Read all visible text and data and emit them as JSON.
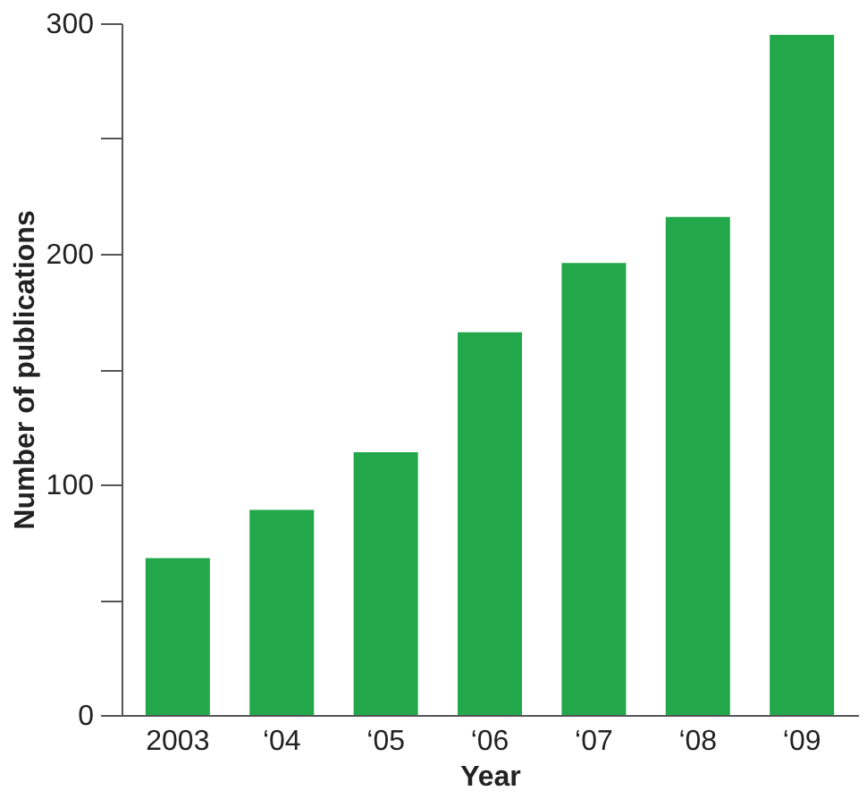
{
  "chart_data": {
    "type": "bar",
    "xlabel": "Year",
    "ylabel": "Number of publications",
    "categories": [
      "2003",
      "‘04",
      "‘05",
      "‘06",
      "‘07",
      "‘08",
      "‘09"
    ],
    "values": [
      68,
      89,
      114,
      166,
      196,
      216,
      295
    ],
    "color": "#22a84a",
    "ylim": [
      0,
      300
    ],
    "yticks": [
      0,
      {
        "value": 50,
        "label": null
      },
      100,
      {
        "value": 150,
        "label": null
      },
      200,
      {
        "value": 250,
        "label": null
      },
      300
    ],
    "grid": false
  }
}
